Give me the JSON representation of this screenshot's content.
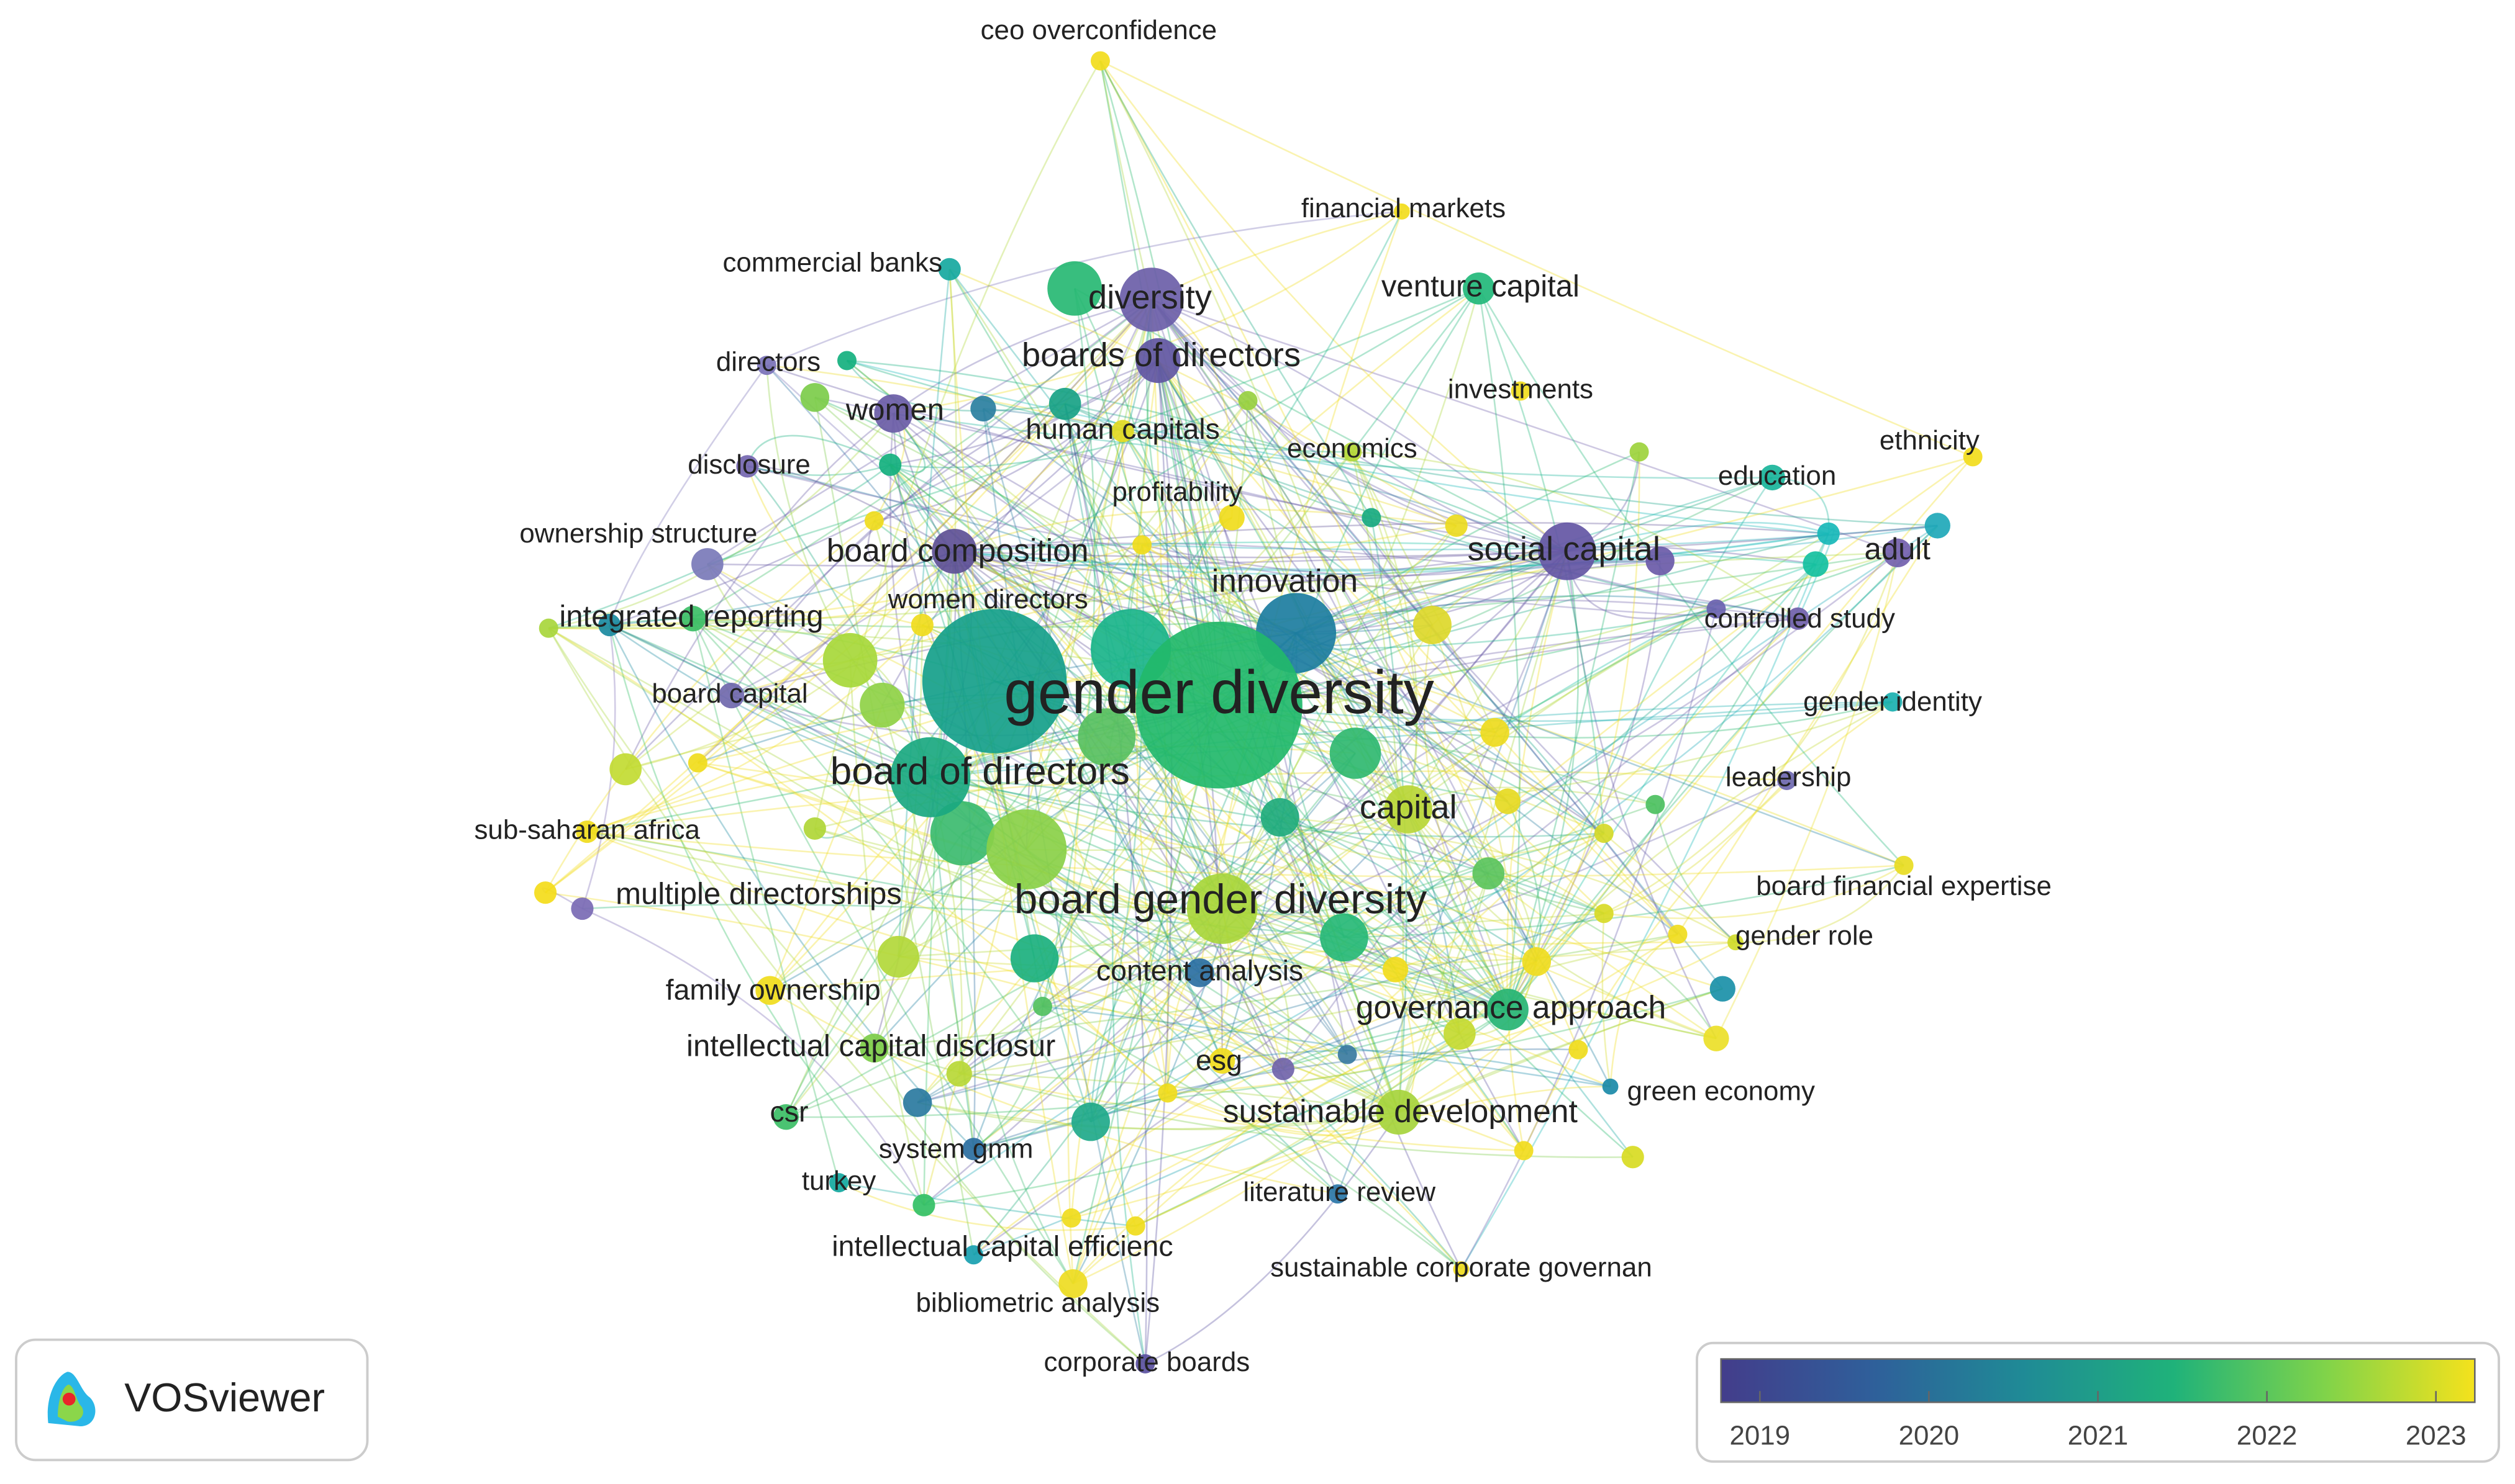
{
  "nodes": [
    {
      "label": "ceo overconfidence"
    },
    {
      "label": "financial markets"
    },
    {
      "label": "commercial banks"
    },
    {
      "label": "diversity"
    },
    {
      "label": "venture capital"
    },
    {
      "label": "directors"
    },
    {
      "label": "boards of directors"
    },
    {
      "label": "investments"
    },
    {
      "label": "women"
    },
    {
      "label": "human capitals"
    },
    {
      "label": "ethnicity"
    },
    {
      "label": "economics"
    },
    {
      "label": "disclosure"
    },
    {
      "label": "education"
    },
    {
      "label": "profitability"
    },
    {
      "label": "ownership structure"
    },
    {
      "label": "social capital"
    },
    {
      "label": "board composition"
    },
    {
      "label": "adult"
    },
    {
      "label": "innovation"
    },
    {
      "label": "women directors"
    },
    {
      "label": "integrated reporting"
    },
    {
      "label": "controlled study"
    },
    {
      "label": "gender diversity"
    },
    {
      "label": "board capital"
    },
    {
      "label": "gender identity"
    },
    {
      "label": "board of directors"
    },
    {
      "label": "leadership"
    },
    {
      "label": "capital"
    },
    {
      "label": "sub-saharan africa"
    },
    {
      "label": "board gender diversity"
    },
    {
      "label": "board financial expertise"
    },
    {
      "label": "multiple directorships"
    },
    {
      "label": "gender role"
    },
    {
      "label": "family ownership"
    },
    {
      "label": "content analysis"
    },
    {
      "label": "governance approach"
    },
    {
      "label": "intellectual capital disclosur"
    },
    {
      "label": "esg"
    },
    {
      "label": "green economy"
    },
    {
      "label": "csr"
    },
    {
      "label": "sustainable development"
    },
    {
      "label": "system gmm"
    },
    {
      "label": "turkey"
    },
    {
      "label": "literature review"
    },
    {
      "label": "intellectual capital efficienc"
    },
    {
      "label": "sustainable corporate governan"
    },
    {
      "label": "bibliometric analysis"
    },
    {
      "label": "corporate boards"
    }
  ],
  "logo": "VOSviewer",
  "colorbar": {
    "range": [
      2018.77,
      2023.23
    ],
    "ticks": [
      2019,
      2020,
      2021,
      2022,
      2023
    ]
  }
}
